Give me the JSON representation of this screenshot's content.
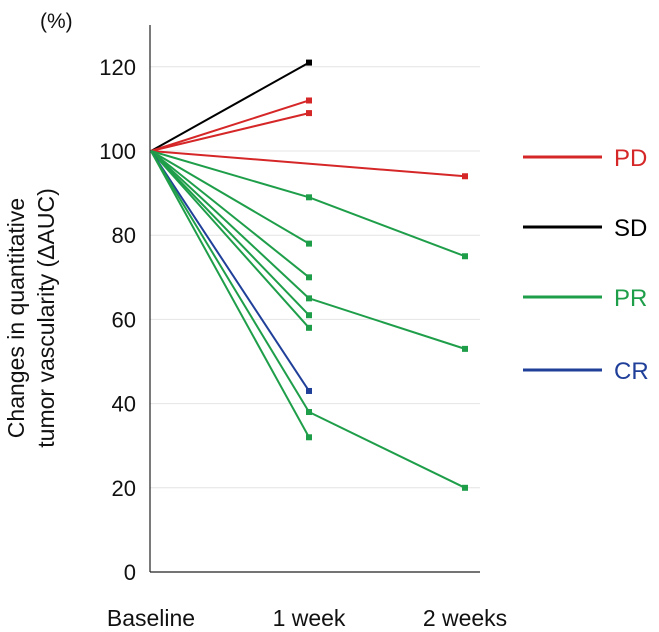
{
  "chart_data": {
    "type": "line",
    "categories": [
      "Baseline",
      "1 week",
      "2 weeks"
    ],
    "unit_label": "(%)",
    "ylabel_lines": [
      "Changes in quantitative",
      "tumor vascularity (ΔAUC)"
    ],
    "ylim": [
      0,
      130
    ],
    "yticks": [
      0,
      20,
      40,
      60,
      80,
      100,
      120
    ],
    "grid": true,
    "legend_position": "right",
    "legend": [
      {
        "key": "PD",
        "label": "PD",
        "color": "#d62728"
      },
      {
        "key": "SD",
        "label": "SD",
        "color": "#000000"
      },
      {
        "key": "PR",
        "label": "PR",
        "color": "#1f9e4a"
      },
      {
        "key": "CR",
        "label": "CR",
        "color": "#1f3f99"
      }
    ],
    "series": [
      {
        "group": "SD",
        "values": [
          100,
          121,
          null
        ]
      },
      {
        "group": "PD",
        "values": [
          100,
          112,
          null
        ]
      },
      {
        "group": "PD",
        "values": [
          100,
          109,
          null
        ]
      },
      {
        "group": "PD",
        "values": [
          100,
          null,
          94
        ]
      },
      {
        "group": "PR",
        "values": [
          100,
          89,
          75
        ]
      },
      {
        "group": "PR",
        "values": [
          100,
          78,
          null
        ]
      },
      {
        "group": "PR",
        "values": [
          100,
          70,
          null
        ]
      },
      {
        "group": "PR",
        "values": [
          100,
          65,
          53
        ]
      },
      {
        "group": "PR",
        "values": [
          100,
          61,
          null
        ]
      },
      {
        "group": "PR",
        "values": [
          100,
          58,
          null
        ]
      },
      {
        "group": "CR",
        "values": [
          100,
          43,
          null
        ]
      },
      {
        "group": "PR",
        "values": [
          100,
          38,
          20
        ]
      },
      {
        "group": "PR",
        "values": [
          100,
          32,
          null
        ]
      }
    ]
  }
}
